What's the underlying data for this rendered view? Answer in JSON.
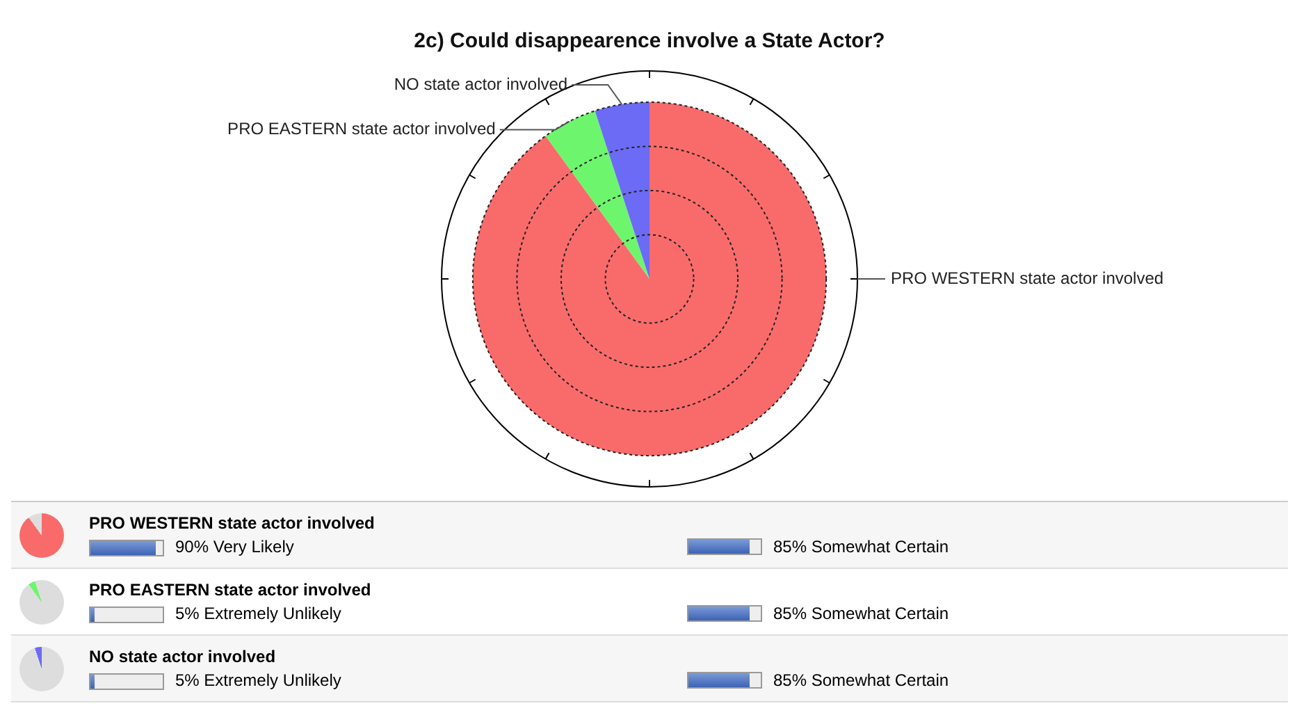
{
  "chart_data": {
    "type": "pie",
    "title": "2c) Could disappearence involve a State Actor?",
    "categories": [
      "PRO WESTERN state actor involved",
      "PRO EASTERN state actor involved",
      "NO state actor involved"
    ],
    "values": [
      90,
      5,
      5
    ],
    "colors": [
      "#f96b6b",
      "#6ef56e",
      "#6b6bf5"
    ],
    "legend": false,
    "annotations": [
      "90%  Very Likely",
      "85%  Somewhat Certain",
      "5%  Extremely Unlikely",
      "85%  Somewhat Certain",
      "5%  Extremely Unlikely",
      "85%  Somewhat Certain"
    ]
  }
}
